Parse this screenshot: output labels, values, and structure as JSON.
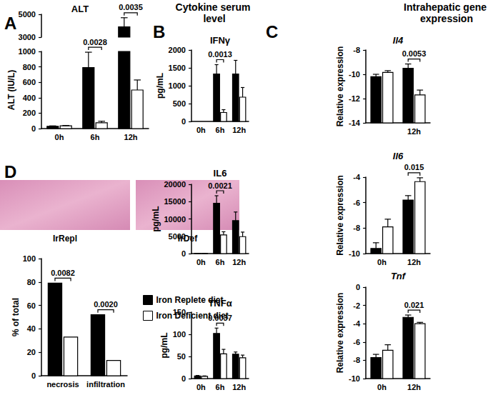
{
  "panel_labels": [
    "A",
    "B",
    "C",
    "D"
  ],
  "headings": [
    "Cytokine serum level",
    "Intrahepatic gene expression"
  ],
  "images": [
    {
      "label": "IrRepl"
    },
    {
      "label": "IrDef"
    }
  ],
  "chart_data": [
    {
      "type": "bar",
      "title": "ALT",
      "y_label": "ALT (IU/L)",
      "categories": [
        "0h",
        "6h",
        "12h"
      ],
      "series": [
        {
          "name": "Iron Replete diet",
          "color": "#000000",
          "values": [
            30,
            790,
            3900
          ],
          "errors": [
            5,
            200,
            800
          ]
        },
        {
          "name": "Iron Deficient diet",
          "color": "#ffffff",
          "values": [
            35,
            75,
            500
          ],
          "errors": [
            5,
            20,
            130
          ]
        }
      ],
      "ylim": [
        0,
        5000
      ],
      "axis_break": [
        1000,
        3000
      ],
      "yticks": [
        0,
        200,
        400,
        600,
        800,
        1000,
        3000,
        5000
      ],
      "grid": false,
      "annotations": [
        {
          "category": "6h",
          "text": "0.0028"
        },
        {
          "category": "12h",
          "text": "0.0035"
        }
      ]
    },
    {
      "type": "bar",
      "title": "IFNγ",
      "y_label": "pg/mL",
      "categories": [
        "0h",
        "6h",
        "12h"
      ],
      "series": [
        {
          "name": "Iron Replete diet",
          "color": "#000000",
          "values": [
            0,
            1330,
            1330
          ],
          "errors": [
            0,
            260,
            380
          ]
        },
        {
          "name": "Iron Deficient diet",
          "color": "#ffffff",
          "values": [
            0,
            250,
            680
          ],
          "errors": [
            0,
            80,
            270
          ]
        }
      ],
      "ylim": [
        0,
        2000
      ],
      "yticks": [
        0,
        500,
        1000,
        1500,
        2000
      ],
      "grid": false,
      "annotations": [
        {
          "category": "6h",
          "text": "0.0013"
        }
      ]
    },
    {
      "type": "bar",
      "title": "IL6",
      "y_label": "pg/mL",
      "categories": [
        "0h",
        "6h",
        "12h"
      ],
      "series": [
        {
          "name": "Iron Replete diet",
          "color": "#000000",
          "values": [
            50,
            14500,
            9500
          ],
          "errors": [
            20,
            2200,
            2500
          ]
        },
        {
          "name": "Iron Deficient diet",
          "color": "#ffffff",
          "values": [
            50,
            5400,
            4900
          ],
          "errors": [
            20,
            900,
            1300
          ]
        }
      ],
      "ylim": [
        0,
        20000
      ],
      "yticks": [
        0,
        5000,
        10000,
        15000,
        20000
      ],
      "grid": false,
      "annotations": [
        {
          "category": "6h",
          "text": "0.0021"
        }
      ]
    },
    {
      "type": "bar",
      "title": "TNFα",
      "y_label": "pg/mL",
      "categories": [
        "0h",
        "6h",
        "12h"
      ],
      "series": [
        {
          "name": "Iron Replete diet",
          "color": "#000000",
          "values": [
            6,
            102,
            55
          ],
          "errors": [
            1,
            12,
            5
          ]
        },
        {
          "name": "Iron Deficient diet",
          "color": "#ffffff",
          "values": [
            5,
            56,
            47
          ],
          "errors": [
            1,
            10,
            6
          ]
        }
      ],
      "ylim": [
        0,
        150
      ],
      "yticks": [
        0,
        50,
        100,
        150
      ],
      "grid": false,
      "annotations": [
        {
          "category": "6h",
          "text": "0.0037"
        }
      ]
    },
    {
      "type": "bar",
      "title": "Il4",
      "y_label": "Relative expression",
      "categories": [
        null,
        "12h"
      ],
      "series": [
        {
          "name": "Iron Replete diet",
          "color": "#000000",
          "values": [
            -10.2,
            -9.5
          ],
          "errors": [
            0.2,
            0.35
          ]
        },
        {
          "name": "Iron Deficient diet",
          "color": "#ffffff",
          "values": [
            -9.85,
            -11.7
          ],
          "errors": [
            0.15,
            0.4
          ]
        }
      ],
      "ylim": [
        -14,
        -8
      ],
      "yticks": [
        -14,
        -12,
        -10,
        -8
      ],
      "grid": false,
      "annotations": [
        {
          "category": "12h",
          "text": "0.0053"
        }
      ]
    },
    {
      "type": "bar",
      "title": "Il6",
      "y_label": "Relative expression",
      "categories": [
        "0h",
        "12h"
      ],
      "series": [
        {
          "name": "Iron Replete diet",
          "color": "#000000",
          "values": [
            -9.6,
            -5.8
          ],
          "errors": [
            0.45,
            0.35
          ]
        },
        {
          "name": "Iron Deficient diet",
          "color": "#ffffff",
          "values": [
            -7.9,
            -4.35
          ],
          "errors": [
            0.6,
            0.3
          ]
        }
      ],
      "ylim": [
        -10,
        -4
      ],
      "yticks": [
        -10,
        -8,
        -6,
        -4
      ],
      "grid": false,
      "annotations": [
        {
          "category": "12h",
          "text": "0.015"
        }
      ]
    },
    {
      "type": "bar",
      "title": "Tnf",
      "y_label": "Relative expression",
      "categories": [
        "0h",
        "12h"
      ],
      "series": [
        {
          "name": "Iron Replete diet",
          "color": "#000000",
          "values": [
            -7.7,
            -3.3
          ],
          "errors": [
            0.35,
            0.25
          ]
        },
        {
          "name": "Iron Deficient diet",
          "color": "#ffffff",
          "values": [
            -6.9,
            -4.0
          ],
          "errors": [
            0.6,
            0.15
          ]
        }
      ],
      "ylim": [
        -10,
        0
      ],
      "yticks": [
        -10,
        -8,
        -6,
        -4,
        -2,
        0
      ],
      "grid": false,
      "annotations": [
        {
          "category": "12h",
          "text": "0.021"
        }
      ]
    },
    {
      "type": "bar",
      "y_label": "% of total",
      "categories": [
        "necrosis",
        "infiltration"
      ],
      "series": [
        {
          "name": "Iron Replete diet",
          "color": "#000000",
          "values": [
            79,
            52
          ]
        },
        {
          "name": "Iron Deficient diet",
          "color": "#ffffff",
          "values": [
            33,
            13
          ]
        }
      ],
      "ylim": [
        0,
        100
      ],
      "yticks": [
        0,
        20,
        40,
        60,
        80,
        100
      ],
      "grid": false,
      "legend": "right",
      "annotations": [
        {
          "category": "necrosis",
          "text": "0.0082"
        },
        {
          "category": "infiltration",
          "text": "0.0020"
        }
      ]
    }
  ]
}
